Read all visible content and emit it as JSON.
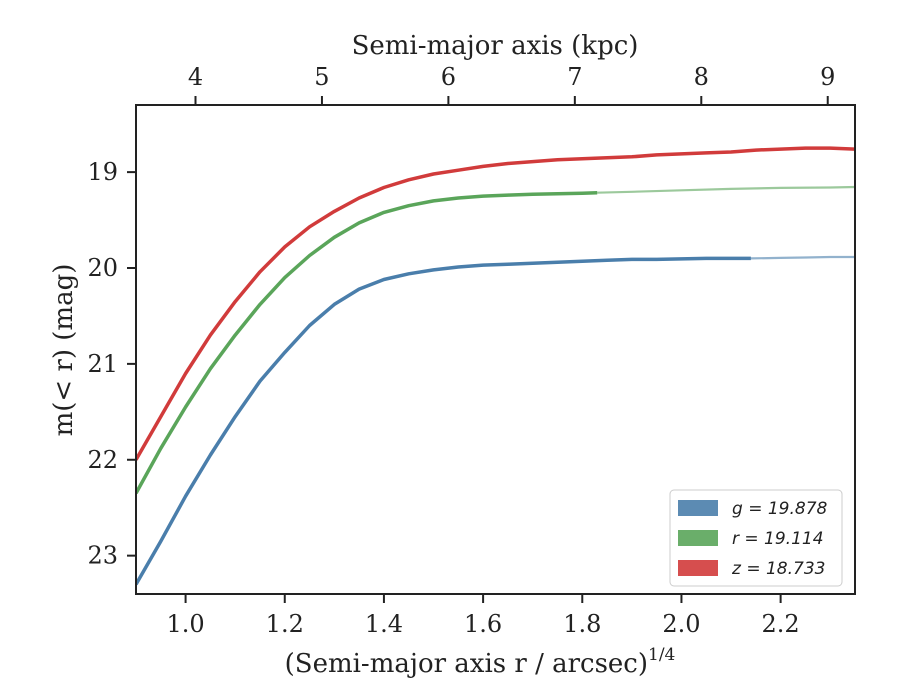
{
  "chart_data": {
    "type": "line",
    "title": "",
    "xlabel": "(Semi-major axis r / arcsec)",
    "xlabel_superscript": "1/4",
    "ylabel": "m(< r) (mag)",
    "top_xlabel": "Semi-major axis (kpc)",
    "xlim": [
      0.9,
      2.35
    ],
    "ylim": [
      23.4,
      18.3
    ],
    "y_inverted": true,
    "grid": false,
    "legend_position": "lower-right",
    "x_ticks": [
      "1.0",
      "1.2",
      "1.4",
      "1.6",
      "1.8",
      "2.0",
      "2.2"
    ],
    "y_ticks": [
      "19",
      "20",
      "21",
      "22",
      "23"
    ],
    "top_ticks": [
      {
        "label": "4",
        "x": 1.02
      },
      {
        "label": "5",
        "x": 1.275
      },
      {
        "label": "6",
        "x": 1.53
      },
      {
        "label": "7",
        "x": 1.785
      },
      {
        "label": "8",
        "x": 2.04
      },
      {
        "label": "9",
        "x": 2.295
      }
    ],
    "series": [
      {
        "name": "g = 19.878",
        "color": "#4a7eab",
        "x": [
          0.9,
          0.95,
          1.0,
          1.05,
          1.1,
          1.15,
          1.2,
          1.25,
          1.3,
          1.35,
          1.4,
          1.45,
          1.5,
          1.55,
          1.6,
          1.65,
          1.7,
          1.75,
          1.8,
          1.85,
          1.9,
          1.95,
          2.0,
          2.05,
          2.1,
          2.14
        ],
        "y": [
          23.3,
          22.85,
          22.38,
          21.95,
          21.55,
          21.18,
          20.88,
          20.6,
          20.38,
          20.22,
          20.12,
          20.06,
          20.02,
          19.99,
          19.97,
          19.96,
          19.95,
          19.94,
          19.93,
          19.92,
          19.91,
          19.91,
          19.905,
          19.9,
          19.9,
          19.9
        ],
        "extension": {
          "x": [
            2.14,
            2.2,
            2.25,
            2.3,
            2.35
          ],
          "y": [
            19.9,
            19.895,
            19.89,
            19.885,
            19.885
          ]
        }
      },
      {
        "name": "r = 19.114",
        "color": "#5aa55a",
        "x": [
          0.9,
          0.95,
          1.0,
          1.05,
          1.1,
          1.15,
          1.2,
          1.25,
          1.3,
          1.35,
          1.4,
          1.45,
          1.5,
          1.55,
          1.6,
          1.65,
          1.7,
          1.75,
          1.8,
          1.83
        ],
        "y": [
          22.35,
          21.88,
          21.45,
          21.05,
          20.7,
          20.38,
          20.1,
          19.87,
          19.68,
          19.53,
          19.42,
          19.35,
          19.3,
          19.27,
          19.25,
          19.24,
          19.23,
          19.225,
          19.22,
          19.215
        ],
        "extension": {
          "x": [
            1.83,
            1.9,
            2.0,
            2.1,
            2.2,
            2.3,
            2.35
          ],
          "y": [
            19.215,
            19.205,
            19.19,
            19.175,
            19.165,
            19.16,
            19.155
          ]
        }
      },
      {
        "name": "z = 18.733",
        "color": "#d13b3b",
        "x": [
          0.9,
          0.95,
          1.0,
          1.05,
          1.1,
          1.15,
          1.2,
          1.25,
          1.3,
          1.35,
          1.4,
          1.45,
          1.5,
          1.55,
          1.6,
          1.65,
          1.7,
          1.75,
          1.8,
          1.85,
          1.9,
          1.95,
          2.0,
          2.05,
          2.1,
          2.15,
          2.2,
          2.25,
          2.3,
          2.35
        ],
        "y": [
          22.0,
          21.55,
          21.1,
          20.7,
          20.35,
          20.04,
          19.78,
          19.57,
          19.41,
          19.27,
          19.16,
          19.08,
          19.02,
          18.98,
          18.94,
          18.91,
          18.89,
          18.87,
          18.86,
          18.85,
          18.84,
          18.82,
          18.81,
          18.8,
          18.79,
          18.77,
          18.76,
          18.75,
          18.75,
          18.76
        ]
      }
    ]
  }
}
